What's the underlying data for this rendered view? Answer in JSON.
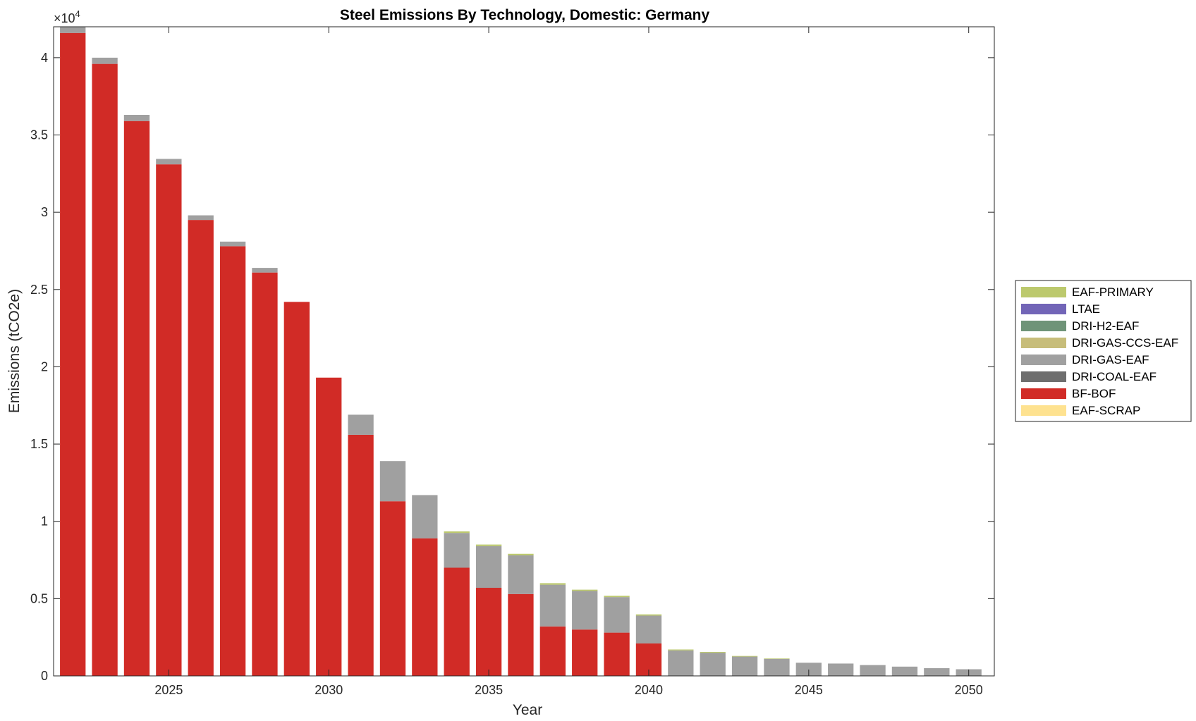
{
  "chart_data": {
    "type": "bar",
    "stacked": true,
    "title": "Steel Emissions By Technology, Domestic: Germany",
    "xlabel": "Year",
    "ylabel": "Emissions (tCO2e)",
    "y_multiplier": "×10",
    "y_multiplier_exponent": "4",
    "xlim": [
      2021.4,
      2050.8
    ],
    "ylim": [
      0,
      42000
    ],
    "grid": false,
    "legend_position": "right",
    "x_ticks": [
      2025,
      2030,
      2035,
      2040,
      2045,
      2050
    ],
    "x_tick_labels": [
      "2025",
      "2030",
      "2035",
      "2040",
      "2045",
      "2050"
    ],
    "y_ticks": [
      0,
      5000,
      10000,
      15000,
      20000,
      25000,
      30000,
      35000,
      40000
    ],
    "y_tick_labels": [
      "0",
      "0.5",
      "1",
      "1.5",
      "2",
      "2.5",
      "3",
      "3.5",
      "4"
    ],
    "x": [
      2022,
      2023,
      2024,
      2025,
      2026,
      2027,
      2028,
      2029,
      2030,
      2031,
      2032,
      2033,
      2034,
      2035,
      2036,
      2037,
      2038,
      2039,
      2040,
      2041,
      2042,
      2043,
      2044,
      2045,
      2046,
      2047,
      2048,
      2049,
      2050
    ],
    "series": [
      {
        "name": "EAF-SCRAP",
        "color": "#fee290",
        "values": [
          0,
          0,
          0,
          0,
          0,
          0,
          0,
          0,
          0,
          0,
          0,
          0,
          0,
          0,
          0,
          0,
          0,
          0,
          0,
          0,
          0,
          0,
          0,
          0,
          0,
          0,
          0,
          0,
          0
        ]
      },
      {
        "name": "BF-BOF",
        "color": "#d12b26",
        "values": [
          41600,
          39600,
          35900,
          33100,
          29500,
          27800,
          26100,
          24200,
          19300,
          15600,
          11300,
          8900,
          7000,
          5700,
          5300,
          3200,
          3000,
          2800,
          2100,
          0,
          0,
          0,
          0,
          0,
          0,
          0,
          0,
          0,
          0
        ]
      },
      {
        "name": "DRI-COAL-EAF",
        "color": "#6e6e6e",
        "values": [
          0,
          0,
          0,
          0,
          0,
          0,
          0,
          0,
          0,
          0,
          0,
          0,
          0,
          0,
          0,
          0,
          0,
          0,
          0,
          0,
          0,
          0,
          0,
          0,
          0,
          0,
          0,
          0,
          0
        ]
      },
      {
        "name": "DRI-GAS-EAF",
        "color": "#a0a0a0",
        "values": [
          500,
          400,
          400,
          350,
          300,
          300,
          300,
          0,
          0,
          1300,
          2600,
          2800,
          2250,
          2700,
          2500,
          2700,
          2500,
          2300,
          1800,
          1650,
          1500,
          1250,
          1100,
          850,
          800,
          700,
          600,
          500,
          430
        ]
      },
      {
        "name": "DRI-GAS-CCS-EAF",
        "color": "#c7bd7a",
        "values": [
          0,
          0,
          0,
          0,
          0,
          0,
          0,
          0,
          0,
          0,
          0,
          0,
          0,
          0,
          0,
          0,
          0,
          0,
          0,
          0,
          0,
          0,
          0,
          0,
          0,
          0,
          0,
          0,
          0
        ]
      },
      {
        "name": "DRI-H2-EAF",
        "color": "#6f9478",
        "values": [
          0,
          0,
          0,
          0,
          0,
          0,
          0,
          0,
          0,
          0,
          0,
          0,
          0,
          0,
          0,
          0,
          0,
          0,
          0,
          0,
          0,
          0,
          0,
          0,
          0,
          0,
          0,
          0,
          0
        ]
      },
      {
        "name": "LTAE",
        "color": "#7265b7",
        "values": [
          0,
          0,
          0,
          0,
          0,
          0,
          0,
          0,
          0,
          0,
          0,
          0,
          0,
          0,
          0,
          0,
          0,
          0,
          0,
          0,
          0,
          0,
          0,
          0,
          0,
          0,
          0,
          0,
          0
        ]
      },
      {
        "name": "EAF-PRIMARY",
        "color": "#bcc96d",
        "values": [
          0,
          0,
          0,
          0,
          0,
          0,
          0,
          0,
          0,
          0,
          0,
          0,
          100,
          100,
          100,
          100,
          80,
          80,
          80,
          60,
          50,
          40,
          30,
          0,
          0,
          0,
          0,
          0,
          0
        ]
      }
    ],
    "legend_order": [
      "EAF-PRIMARY",
      "LTAE",
      "DRI-H2-EAF",
      "DRI-GAS-CCS-EAF",
      "DRI-GAS-EAF",
      "DRI-COAL-EAF",
      "BF-BOF",
      "EAF-SCRAP"
    ]
  }
}
